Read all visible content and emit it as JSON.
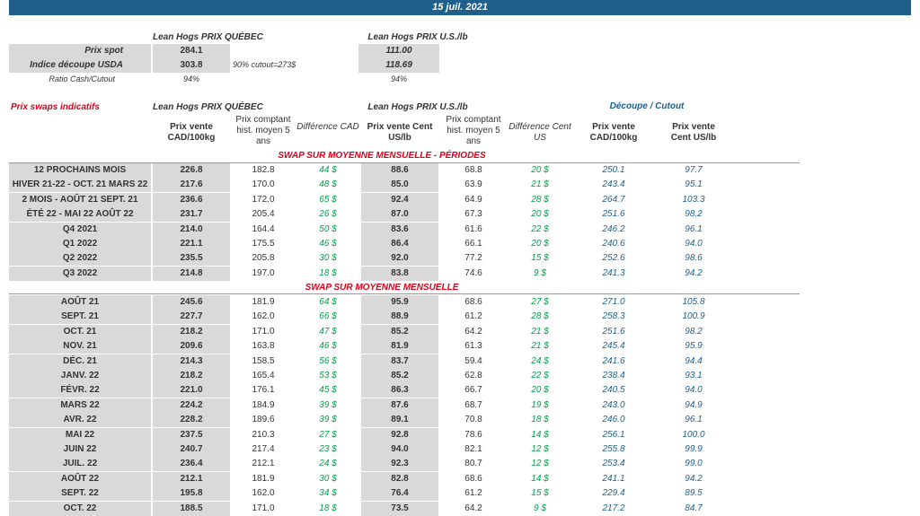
{
  "date": "15 juil. 2021",
  "top": {
    "qc_title": "Lean Hogs PRIX QUÉBEC",
    "us_title": "Lean Hogs PRIX U.S./lb",
    "spot_label": "Prix spot",
    "spot_qc": "284.1",
    "spot_us": "111.00",
    "usda_label": "Indice découpe USDA",
    "usda_qc": "303.8",
    "usda_note": "90% cutout=273$",
    "usda_us": "118.69",
    "ratio_label": "Ratio Cash/Cutout",
    "ratio_qc": "94%",
    "ratio_us": "94%"
  },
  "swap": {
    "title": "Prix swaps indicatifs",
    "qc_title": "Lean Hogs PRIX QUÉBEC",
    "us_title": "Lean Hogs PRIX U.S./lb",
    "cutout_title": "Découpe / Cutout",
    "h1": "Prix vente CAD/100kg",
    "h2": "Prix comptant hist. moyen 5 ans",
    "h3": "Différence CAD",
    "h4": "Prix vente Cent US/lb",
    "h5": "Prix comptant hist. moyen 5 ans",
    "h6": "Différence Cent US",
    "h7": "Prix vente CAD/100kg",
    "h8": "Prix vente Cent US/lb",
    "section1": "SWAP SUR MOYENNE MENSUELLE - PÉRIODES",
    "section2": "SWAP SUR MOYENNE MENSUELLE"
  },
  "periods": [
    [
      "12 PROCHAINS MOIS",
      "226.8",
      "182.8",
      "44 $",
      "88.6",
      "68.8",
      "20 $",
      "250.1",
      "97.7"
    ],
    [
      "HIVER 21-22 - OCT. 21 MARS 22",
      "217.6",
      "170.0",
      "48 $",
      "85.0",
      "63.9",
      "21 $",
      "243.4",
      "95.1"
    ],
    [
      "2 MOIS - AOÛT 21 SEPT. 21",
      "236.6",
      "172.0",
      "65 $",
      "92.4",
      "64.9",
      "28 $",
      "264.7",
      "103.3"
    ],
    [
      "ÉTÉ 22 - MAI 22 AOÛT 22",
      "231.7",
      "205.4",
      "26 $",
      "87.0",
      "67.3",
      "20 $",
      "251.6",
      "98.2"
    ],
    [
      "Q4 2021",
      "214.0",
      "164.4",
      "50 $",
      "83.6",
      "61.6",
      "22 $",
      "246.2",
      "96.1"
    ],
    [
      "Q1 2022",
      "221.1",
      "175.5",
      "46 $",
      "86.4",
      "66.1",
      "20 $",
      "240.6",
      "94.0"
    ],
    [
      "Q2 2022",
      "235.5",
      "205.8",
      "30 $",
      "92.0",
      "77.2",
      "15 $",
      "252.6",
      "98.6"
    ],
    [
      "Q3 2022",
      "214.8",
      "197.0",
      "18 $",
      "83.8",
      "74.6",
      "9 $",
      "241.3",
      "94.2"
    ]
  ],
  "months": [
    [
      "AOÛT 21",
      "245.6",
      "181.9",
      "64 $",
      "95.9",
      "68.6",
      "27 $",
      "271.0",
      "105.8"
    ],
    [
      "SEPT. 21",
      "227.7",
      "162.0",
      "66 $",
      "88.9",
      "61.2",
      "28 $",
      "258.3",
      "100.9"
    ],
    [
      "OCT. 21",
      "218.2",
      "171.0",
      "47 $",
      "85.2",
      "64.2",
      "21 $",
      "251.6",
      "98.2"
    ],
    [
      "NOV. 21",
      "209.6",
      "163.8",
      "46 $",
      "81.9",
      "61.3",
      "21 $",
      "245.4",
      "95.9"
    ],
    [
      "DÉC. 21",
      "214.3",
      "158.5",
      "56 $",
      "83.7",
      "59.4",
      "24 $",
      "241.6",
      "94.4"
    ],
    [
      "JANV. 22",
      "218.2",
      "165.4",
      "53 $",
      "85.2",
      "62.8",
      "22 $",
      "238.4",
      "93.1"
    ],
    [
      "FÉVR. 22",
      "221.0",
      "176.1",
      "45 $",
      "86.3",
      "66.7",
      "20 $",
      "240.5",
      "94.0"
    ],
    [
      "MARS 22",
      "224.2",
      "184.9",
      "39 $",
      "87.6",
      "68.7",
      "19 $",
      "243.0",
      "94.9"
    ],
    [
      "AVR. 22",
      "228.2",
      "189.6",
      "39 $",
      "89.1",
      "70.8",
      "18 $",
      "246.0",
      "96.1"
    ],
    [
      "MAI 22",
      "237.5",
      "210.3",
      "27 $",
      "92.8",
      "78.6",
      "14 $",
      "256.1",
      "100.0"
    ],
    [
      "JUIN 22",
      "240.7",
      "217.4",
      "23 $",
      "94.0",
      "82.1",
      "12 $",
      "255.8",
      "99.9"
    ],
    [
      "JUIL. 22",
      "236.4",
      "212.1",
      "24 $",
      "92.3",
      "80.7",
      "12 $",
      "253.4",
      "99.0"
    ],
    [
      "AOÛT 22",
      "212.1",
      "181.9",
      "30 $",
      "82.8",
      "68.6",
      "14 $",
      "241.1",
      "94.2"
    ],
    [
      "SEPT. 22",
      "195.8",
      "162.0",
      "34 $",
      "76.4",
      "61.2",
      "15 $",
      "229.4",
      "89.5"
    ],
    [
      "OCT. 22",
      "188.5",
      "171.0",
      "18 $",
      "73.5",
      "64.2",
      "9 $",
      "217.2",
      "84.7"
    ]
  ],
  "colors": {
    "banner": "#1f5f8b",
    "green": "#00a04a",
    "blue": "#1f5f8b",
    "red": "#e0001a",
    "grey": "#d9d9d9"
  }
}
